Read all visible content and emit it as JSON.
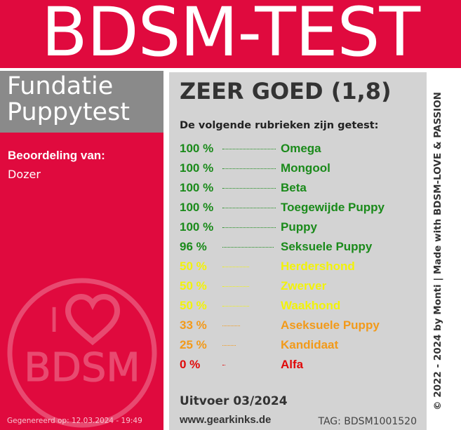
{
  "header": {
    "title": "BDSM-TEST"
  },
  "sidebar": {
    "foundation_line1": "Fundatie",
    "foundation_line2": "Puppytest",
    "rated_by_label": "Beoordeling van:",
    "rated_name": "Dozer",
    "logo": {
      "top_text": "I",
      "icon": "heart-icon",
      "bottom_text": "BDSM"
    },
    "generated": "Gegenereerd op: 12.03.2024 - 19:49"
  },
  "main": {
    "score": "ZEER GOED (1,8)",
    "intro": "De volgende rubrieken zijn getest:",
    "results": [
      {
        "percent": "100 %",
        "value": 100,
        "label": "Omega",
        "color": "#1a8a1a"
      },
      {
        "percent": "100 %",
        "value": 100,
        "label": "Mongool",
        "color": "#1a8a1a"
      },
      {
        "percent": "100 %",
        "value": 100,
        "label": "Beta",
        "color": "#1a8a1a"
      },
      {
        "percent": "100 %",
        "value": 100,
        "label": "Toegewijde Puppy",
        "color": "#1a8a1a"
      },
      {
        "percent": "100 %",
        "value": 100,
        "label": "Puppy",
        "color": "#1a8a1a"
      },
      {
        "percent": "96 %",
        "value": 96,
        "label": "Seksuele Puppy",
        "color": "#1a8a1a"
      },
      {
        "percent": "50 %",
        "value": 50,
        "label": "Herdershond",
        "color": "#f2f20a"
      },
      {
        "percent": "50 %",
        "value": 50,
        "label": "Zwerver",
        "color": "#f2f20a"
      },
      {
        "percent": "50 %",
        "value": 50,
        "label": "Waakhond",
        "color": "#f2f20a"
      },
      {
        "percent": "33 %",
        "value": 33,
        "label": "Aseksuele Puppy",
        "color": "#f29a1a"
      },
      {
        "percent": "25 %",
        "value": 25,
        "label": "Kandidaat",
        "color": "#f29a1a"
      },
      {
        "percent": "0 %",
        "value": 0,
        "label": "Alfa",
        "color": "#e00a0a"
      }
    ],
    "issue": "Uitvoer 03/2024",
    "website": "www.gearkinks.de",
    "tag": "TAG: BDSM1001520"
  },
  "credit": "© 2022 - 2024 by Monti | Made with BDSM-LOVE & PASSION",
  "colors": {
    "brand": "#e00a3e",
    "panel": "#d3d3d3",
    "foundation_bg": "#8a8a8a"
  }
}
